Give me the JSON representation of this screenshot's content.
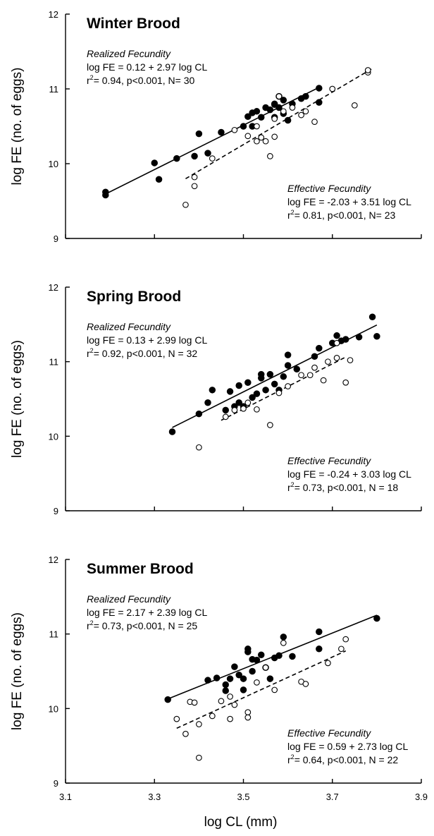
{
  "chart_data": [
    {
      "type": "scatter",
      "title": "Winter Brood",
      "ylabel": "log FE (no. of eggs)",
      "xlabel": "",
      "xlim": [
        3.1,
        3.9
      ],
      "ylim": [
        9,
        12
      ],
      "x_ticks": [
        "3.1",
        "3.3",
        "3.5",
        "3.7",
        "3.9"
      ],
      "y_ticks": [
        "9",
        "10",
        "11",
        "12"
      ],
      "show_x_tick_labels": false,
      "grid": false,
      "annotations": [
        {
          "heading": "Realized Fecundity",
          "equation": "log FE =  0.12 + 2.97 log CL",
          "r_prefix": "r",
          "r_sup": "2",
          "stats": "= 0.94, p<0.001, N= 30",
          "placement": "top-left"
        },
        {
          "heading": "Effective Fecundity",
          "equation": "log FE =  -2.03 + 3.51 log CL",
          "r_prefix": "r",
          "r_sup": "2",
          "stats": "= 0.81, p<0.001, N= 23",
          "placement": "bottom-right"
        }
      ],
      "series": [
        {
          "marker": "filled",
          "line": "solid",
          "fit": [
            0.12,
            2.97
          ],
          "fit_x": [
            3.19,
            3.67
          ],
          "points": [
            [
              3.19,
              9.62
            ],
            [
              3.19,
              9.58
            ],
            [
              3.3,
              10.01
            ],
            [
              3.31,
              9.79
            ],
            [
              3.35,
              10.07
            ],
            [
              3.39,
              10.1
            ],
            [
              3.4,
              10.4
            ],
            [
              3.42,
              10.14
            ],
            [
              3.45,
              10.42
            ],
            [
              3.51,
              10.63
            ],
            [
              3.52,
              10.68
            ],
            [
              3.52,
              10.5
            ],
            [
              3.53,
              10.7
            ],
            [
              3.54,
              10.62
            ],
            [
              3.55,
              10.75
            ],
            [
              3.56,
              10.72
            ],
            [
              3.57,
              10.8
            ],
            [
              3.57,
              10.62
            ],
            [
              3.58,
              10.75
            ],
            [
              3.58,
              10.9
            ],
            [
              3.59,
              10.85
            ],
            [
              3.59,
              10.67
            ],
            [
              3.6,
              10.58
            ],
            [
              3.61,
              10.8
            ],
            [
              3.63,
              10.87
            ],
            [
              3.64,
              10.9
            ],
            [
              3.67,
              11.01
            ],
            [
              3.67,
              10.82
            ],
            [
              3.57,
              10.79
            ],
            [
              3.5,
              10.5
            ]
          ]
        },
        {
          "marker": "open",
          "line": "dashed",
          "fit": [
            -2.03,
            3.51
          ],
          "fit_x": [
            3.37,
            3.79
          ],
          "points": [
            [
              3.37,
              9.45
            ],
            [
              3.39,
              9.82
            ],
            [
              3.39,
              9.7
            ],
            [
              3.43,
              10.07
            ],
            [
              3.48,
              10.45
            ],
            [
              3.51,
              10.37
            ],
            [
              3.53,
              10.3
            ],
            [
              3.53,
              10.5
            ],
            [
              3.54,
              10.35
            ],
            [
              3.55,
              10.3
            ],
            [
              3.56,
              10.1
            ],
            [
              3.57,
              10.6
            ],
            [
              3.57,
              10.36
            ],
            [
              3.58,
              10.9
            ],
            [
              3.59,
              10.7
            ],
            [
              3.61,
              10.75
            ],
            [
              3.63,
              10.65
            ],
            [
              3.64,
              10.7
            ],
            [
              3.66,
              10.56
            ],
            [
              3.7,
              11.0
            ],
            [
              3.75,
              10.78
            ],
            [
              3.78,
              11.22
            ],
            [
              3.78,
              11.25
            ]
          ]
        }
      ]
    },
    {
      "type": "scatter",
      "title": "Spring Brood",
      "ylabel": "log FE (no. of eggs)",
      "xlabel": "",
      "xlim": [
        3.1,
        3.9
      ],
      "ylim": [
        9,
        12
      ],
      "x_ticks": [
        "3.1",
        "3.3",
        "3.5",
        "3.7",
        "3.9"
      ],
      "y_ticks": [
        "9",
        "10",
        "11",
        "12"
      ],
      "show_x_tick_labels": false,
      "grid": false,
      "annotations": [
        {
          "heading": "Realized Fecundity",
          "equation": "log FE =  0.13 + 2.99 log CL",
          "r_prefix": "r",
          "r_sup": "2",
          "stats": "= 0.92, p<0.001, N = 32",
          "placement": "top-left"
        },
        {
          "heading": "Effective Fecundity",
          "equation": "log FE =  -0.24 + 3.03 log CL",
          "r_prefix": "r",
          "r_sup": "2",
          "stats": "= 0.73, p<0.001, N = 18",
          "placement": "bottom-right"
        }
      ],
      "series": [
        {
          "marker": "filled",
          "line": "solid",
          "fit": [
            0.13,
            2.99
          ],
          "fit_x": [
            3.34,
            3.8
          ],
          "points": [
            [
              3.34,
              10.06
            ],
            [
              3.4,
              10.3
            ],
            [
              3.42,
              10.45
            ],
            [
              3.43,
              10.62
            ],
            [
              3.46,
              10.35
            ],
            [
              3.47,
              10.6
            ],
            [
              3.48,
              10.4
            ],
            [
              3.49,
              10.68
            ],
            [
              3.49,
              10.45
            ],
            [
              3.5,
              10.4
            ],
            [
              3.51,
              10.72
            ],
            [
              3.53,
              10.57
            ],
            [
              3.54,
              10.78
            ],
            [
              3.54,
              10.83
            ],
            [
              3.55,
              10.62
            ],
            [
              3.56,
              10.83
            ],
            [
              3.57,
              10.7
            ],
            [
              3.59,
              10.8
            ],
            [
              3.6,
              11.09
            ],
            [
              3.6,
              10.95
            ],
            [
              3.62,
              10.9
            ],
            [
              3.66,
              11.07
            ],
            [
              3.67,
              11.18
            ],
            [
              3.7,
              11.25
            ],
            [
              3.71,
              11.35
            ],
            [
              3.72,
              11.28
            ],
            [
              3.73,
              11.3
            ],
            [
              3.76,
              11.33
            ],
            [
              3.79,
              11.6
            ],
            [
              3.8,
              11.34
            ],
            [
              3.58,
              10.62
            ],
            [
              3.52,
              10.52
            ]
          ]
        },
        {
          "marker": "open",
          "line": "dashed",
          "fit": [
            -0.24,
            3.03
          ],
          "fit_x": [
            3.45,
            3.73
          ],
          "points": [
            [
              3.4,
              9.85
            ],
            [
              3.46,
              10.26
            ],
            [
              3.48,
              10.35
            ],
            [
              3.5,
              10.37
            ],
            [
              3.51,
              10.45
            ],
            [
              3.53,
              10.36
            ],
            [
              3.56,
              10.15
            ],
            [
              3.58,
              10.58
            ],
            [
              3.6,
              10.67
            ],
            [
              3.63,
              10.82
            ],
            [
              3.65,
              10.82
            ],
            [
              3.66,
              10.92
            ],
            [
              3.68,
              10.75
            ],
            [
              3.69,
              11.0
            ],
            [
              3.71,
              11.05
            ],
            [
              3.71,
              11.25
            ],
            [
              3.73,
              10.72
            ],
            [
              3.74,
              11.02
            ]
          ]
        }
      ]
    },
    {
      "type": "scatter",
      "title": "Summer Brood",
      "ylabel": "log FE (no. of eggs)",
      "xlabel": "log CL (mm)",
      "xlim": [
        3.1,
        3.9
      ],
      "ylim": [
        9,
        12
      ],
      "x_ticks": [
        "3.1",
        "3.3",
        "3.5",
        "3.7",
        "3.9"
      ],
      "y_ticks": [
        "9",
        "10",
        "11",
        "12"
      ],
      "show_x_tick_labels": true,
      "grid": false,
      "annotations": [
        {
          "heading": "Realized Fecundity",
          "equation": "log FE =  2.17 + 2.39 log CL",
          "r_prefix": "r",
          "r_sup": "2",
          "stats": "= 0.73, p<0.001, N = 25",
          "placement": "top-left"
        },
        {
          "heading": "Effective Fecundity",
          "equation": "log FE =  0.59 + 2.73 log CL",
          "r_prefix": "r",
          "r_sup": "2",
          "stats": "= 0.64, p<0.001, N = 22",
          "placement": "bottom-right"
        }
      ],
      "series": [
        {
          "marker": "filled",
          "line": "solid",
          "fit": [
            2.17,
            2.39
          ],
          "fit_x": [
            3.33,
            3.8
          ],
          "points": [
            [
              3.33,
              10.12
            ],
            [
              3.42,
              10.38
            ],
            [
              3.44,
              10.41
            ],
            [
              3.46,
              10.32
            ],
            [
              3.47,
              10.4
            ],
            [
              3.48,
              10.56
            ],
            [
              3.49,
              10.45
            ],
            [
              3.5,
              10.25
            ],
            [
              3.5,
              10.4
            ],
            [
              3.51,
              10.76
            ],
            [
              3.51,
              10.8
            ],
            [
              3.52,
              10.66
            ],
            [
              3.52,
              10.5
            ],
            [
              3.53,
              10.65
            ],
            [
              3.54,
              10.72
            ],
            [
              3.55,
              10.55
            ],
            [
              3.56,
              10.4
            ],
            [
              3.57,
              10.68
            ],
            [
              3.58,
              10.71
            ],
            [
              3.59,
              10.96
            ],
            [
              3.61,
              10.7
            ],
            [
              3.67,
              10.8
            ],
            [
              3.67,
              11.03
            ],
            [
              3.8,
              11.21
            ],
            [
              3.46,
              10.24
            ]
          ]
        },
        {
          "marker": "open",
          "line": "dashed",
          "fit": [
            0.59,
            2.73
          ],
          "fit_x": [
            3.35,
            3.73
          ],
          "points": [
            [
              3.35,
              9.86
            ],
            [
              3.37,
              9.66
            ],
            [
              3.38,
              10.09
            ],
            [
              3.39,
              10.08
            ],
            [
              3.4,
              9.79
            ],
            [
              3.4,
              9.34
            ],
            [
              3.43,
              9.9
            ],
            [
              3.45,
              10.1
            ],
            [
              3.47,
              10.16
            ],
            [
              3.47,
              9.86
            ],
            [
              3.48,
              10.05
            ],
            [
              3.51,
              9.95
            ],
            [
              3.51,
              9.88
            ],
            [
              3.53,
              10.35
            ],
            [
              3.55,
              10.55
            ],
            [
              3.57,
              10.25
            ],
            [
              3.59,
              10.88
            ],
            [
              3.63,
              10.36
            ],
            [
              3.64,
              10.33
            ],
            [
              3.69,
              10.61
            ],
            [
              3.72,
              10.8
            ],
            [
              3.73,
              10.93
            ]
          ]
        }
      ]
    }
  ]
}
